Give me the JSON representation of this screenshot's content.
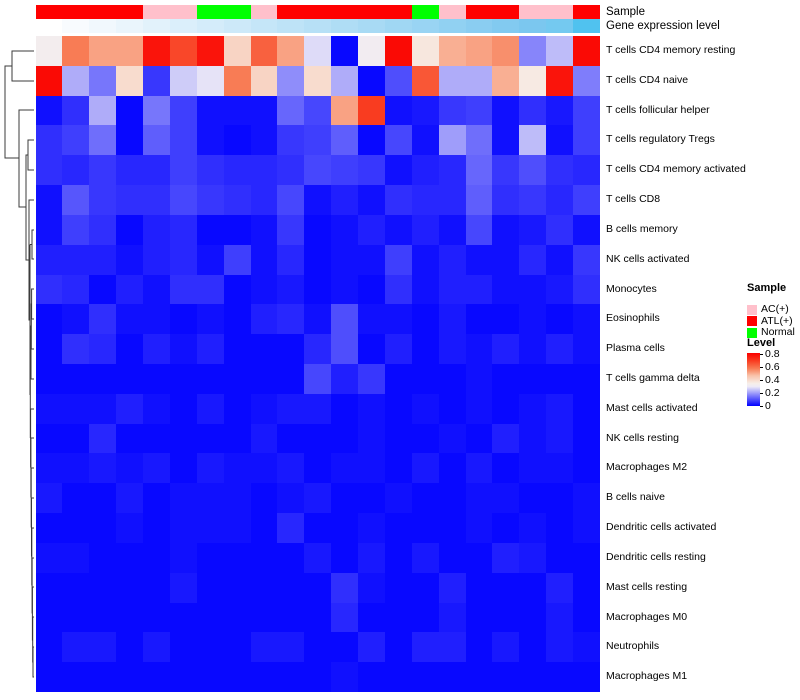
{
  "top_annotation_labels": {
    "sample": "Sample",
    "gene": "Gene expression level"
  },
  "legend": {
    "sample": {
      "title": "Sample",
      "items": [
        {
          "label": "AC(+)",
          "color": "#FFC0CB"
        },
        {
          "label": "ATL(+)",
          "color": "#FF0000"
        },
        {
          "label": "Normal",
          "color": "#00FF00"
        }
      ]
    },
    "level": {
      "title": "Level",
      "ticks": [
        "0.8",
        "0.6",
        "0.4",
        "0.2",
        "0"
      ],
      "tick_values": [
        0.8,
        0.6,
        0.4,
        0.2,
        0
      ],
      "max": 0.82
    }
  },
  "chart_data": {
    "type": "heatmap",
    "title": "Immune cell composition heatmap with sample and gene-expression-level annotations",
    "n_columns": 21,
    "rows": [
      "T cells CD4 memory resting",
      "T cells CD4 naive",
      "T cells follicular helper",
      "T cells regulatory  Tregs",
      "T cells CD4 memory activated",
      "T cells CD8",
      "B cells memory",
      "NK cells activated",
      "Monocytes",
      "Eosinophils",
      "Plasma cells",
      "T cells gamma delta",
      "Mast cells activated",
      "NK cells resting",
      "Macrophages M2",
      "B cells naive",
      "Dendritic cells activated",
      "Dendritic cells resting",
      "Mast cells resting",
      "Macrophages M0",
      "Neutrophils",
      "Macrophages M1"
    ],
    "sample_groups": [
      "ATL(+)",
      "ATL(+)",
      "ATL(+)",
      "ATL(+)",
      "AC(+)",
      "AC(+)",
      "Normal",
      "Normal",
      "AC(+)",
      "ATL(+)",
      "ATL(+)",
      "ATL(+)",
      "ATL(+)",
      "ATL(+)",
      "Normal",
      "AC(+)",
      "ATL(+)",
      "ATL(+)",
      "AC(+)",
      "AC(+)",
      "ATL(+)"
    ],
    "sample_group_colors": {
      "AC(+)": "#FFC0CB",
      "ATL(+)": "#FF0000",
      "Normal": "#00FF00"
    },
    "gene_expression_gradient": [
      "#FFFFFF",
      "#F8FBFE",
      "#F1F8FD",
      "#EAF5FC",
      "#E2F2FB",
      "#DBEFFB",
      "#D4ECFA",
      "#CDE9F9",
      "#C5E6F8",
      "#BEE3F7",
      "#B7E0F6",
      "#AFDDF5",
      "#A8DAF4",
      "#A0D7F3",
      "#99D4F3",
      "#91D1F2",
      "#8ACDF1",
      "#82CAF0",
      "#7BC7EF",
      "#74C9F0",
      "#50C2EF"
    ],
    "colormap": {
      "stops": [
        [
          0,
          "#0000FF"
        ],
        [
          0.3,
          "#EEEBF7"
        ],
        [
          0.35,
          "#F7EEE8"
        ],
        [
          0.47,
          "#F9C2AA"
        ],
        [
          0.58,
          "#F87C55"
        ],
        [
          0.7,
          "#F93C20"
        ],
        [
          0.82,
          "#FA0000"
        ]
      ],
      "min": 0,
      "max": 0.82
    },
    "values": [
      [
        0.33,
        0.58,
        0.52,
        0.52,
        0.78,
        0.68,
        0.78,
        0.42,
        0.63,
        0.52,
        0.28,
        0.01,
        0.32,
        0.8,
        0.37,
        0.5,
        0.52,
        0.55,
        0.17,
        0.24,
        0.8
      ],
      [
        0.8,
        0.22,
        0.15,
        0.4,
        0.07,
        0.26,
        0.29,
        0.58,
        0.42,
        0.18,
        0.4,
        0.22,
        0.01,
        0.1,
        0.65,
        0.22,
        0.22,
        0.5,
        0.36,
        0.78,
        0.16
      ],
      [
        0.02,
        0.06,
        0.22,
        0.01,
        0.15,
        0.08,
        0.02,
        0.02,
        0.02,
        0.13,
        0.09,
        0.52,
        0.7,
        0.02,
        0.03,
        0.07,
        0.08,
        0.02,
        0.06,
        0.03,
        0.08
      ],
      [
        0.06,
        0.08,
        0.14,
        0.01,
        0.12,
        0.08,
        0.02,
        0.01,
        0.02,
        0.07,
        0.08,
        0.12,
        0.01,
        0.09,
        0.02,
        0.2,
        0.14,
        0.02,
        0.24,
        0.02,
        0.08
      ],
      [
        0.06,
        0.05,
        0.07,
        0.05,
        0.05,
        0.08,
        0.06,
        0.05,
        0.05,
        0.06,
        0.09,
        0.08,
        0.07,
        0.02,
        0.04,
        0.05,
        0.13,
        0.07,
        0.1,
        0.06,
        0.05
      ],
      [
        0.02,
        0.11,
        0.07,
        0.06,
        0.06,
        0.09,
        0.07,
        0.06,
        0.05,
        0.09,
        0.02,
        0.04,
        0.02,
        0.06,
        0.05,
        0.05,
        0.12,
        0.06,
        0.07,
        0.05,
        0.08
      ],
      [
        0.02,
        0.08,
        0.06,
        0.01,
        0.04,
        0.05,
        0.01,
        0.01,
        0.02,
        0.07,
        0.01,
        0.02,
        0.04,
        0.02,
        0.04,
        0.02,
        0.09,
        0.02,
        0.03,
        0.06,
        0.02
      ],
      [
        0.04,
        0.04,
        0.04,
        0.02,
        0.04,
        0.05,
        0.02,
        0.08,
        0.02,
        0.05,
        0.01,
        0.02,
        0.02,
        0.08,
        0.02,
        0.04,
        0.02,
        0.02,
        0.05,
        0.02,
        0.07
      ],
      [
        0.06,
        0.05,
        0.01,
        0.04,
        0.02,
        0.06,
        0.06,
        0.01,
        0.02,
        0.03,
        0.01,
        0.02,
        0.01,
        0.06,
        0.02,
        0.04,
        0.04,
        0.02,
        0.02,
        0.03,
        0.06
      ],
      [
        0.01,
        0.02,
        0.06,
        0.02,
        0.02,
        0.01,
        0.02,
        0.01,
        0.04,
        0.05,
        0.02,
        0.1,
        0.02,
        0.02,
        0.01,
        0.03,
        0.01,
        0.01,
        0.02,
        0.01,
        0.02
      ],
      [
        0.01,
        0.06,
        0.05,
        0.01,
        0.04,
        0.02,
        0.04,
        0.01,
        0.01,
        0.01,
        0.05,
        0.1,
        0.01,
        0.04,
        0.01,
        0.03,
        0.02,
        0.04,
        0.02,
        0.04,
        0.02
      ],
      [
        0.01,
        0.01,
        0.01,
        0.01,
        0.01,
        0.01,
        0.01,
        0.01,
        0.01,
        0.01,
        0.09,
        0.04,
        0.07,
        0.01,
        0.01,
        0.01,
        0.02,
        0.01,
        0.01,
        0.01,
        0.01
      ],
      [
        0.02,
        0.02,
        0.02,
        0.04,
        0.02,
        0.01,
        0.03,
        0.01,
        0.02,
        0.03,
        0.03,
        0.01,
        0.02,
        0.01,
        0.02,
        0.01,
        0.02,
        0.01,
        0.02,
        0.03,
        0.01
      ],
      [
        0.01,
        0.01,
        0.05,
        0.01,
        0.01,
        0.01,
        0.01,
        0.01,
        0.03,
        0.01,
        0.01,
        0.01,
        0.02,
        0.01,
        0.01,
        0.02,
        0.01,
        0.04,
        0.02,
        0.03,
        0.01
      ],
      [
        0.02,
        0.02,
        0.03,
        0.02,
        0.03,
        0.01,
        0.03,
        0.02,
        0.02,
        0.03,
        0.01,
        0.02,
        0.02,
        0.01,
        0.03,
        0.01,
        0.03,
        0.01,
        0.02,
        0.02,
        0.01
      ],
      [
        0.03,
        0.01,
        0.01,
        0.03,
        0.01,
        0.02,
        0.02,
        0.02,
        0.01,
        0.02,
        0.03,
        0.01,
        0.01,
        0.02,
        0.01,
        0.01,
        0.02,
        0.02,
        0.01,
        0.01,
        0.02
      ],
      [
        0.01,
        0.01,
        0.01,
        0.02,
        0.01,
        0.02,
        0.02,
        0.02,
        0.01,
        0.05,
        0.01,
        0.01,
        0.02,
        0.01,
        0.01,
        0.01,
        0.02,
        0.01,
        0.02,
        0.01,
        0.02
      ],
      [
        0.02,
        0.02,
        0.01,
        0.01,
        0.01,
        0.02,
        0.01,
        0.01,
        0.01,
        0.01,
        0.03,
        0.01,
        0.03,
        0.01,
        0.03,
        0.01,
        0.01,
        0.04,
        0.03,
        0.01,
        0.01
      ],
      [
        0.01,
        0.01,
        0.01,
        0.01,
        0.01,
        0.03,
        0.01,
        0.01,
        0.01,
        0.01,
        0.01,
        0.06,
        0.02,
        0.01,
        0.01,
        0.04,
        0.01,
        0.01,
        0.01,
        0.04,
        0.01
      ],
      [
        0.01,
        0.01,
        0.01,
        0.01,
        0.01,
        0.01,
        0.01,
        0.01,
        0.01,
        0.01,
        0.01,
        0.05,
        0.01,
        0.01,
        0.01,
        0.03,
        0.01,
        0.01,
        0.01,
        0.03,
        0.01
      ],
      [
        0.01,
        0.03,
        0.03,
        0.01,
        0.03,
        0.01,
        0.01,
        0.01,
        0.03,
        0.03,
        0.01,
        0.01,
        0.04,
        0.01,
        0.04,
        0.04,
        0.01,
        0.03,
        0.01,
        0.03,
        0.02
      ],
      [
        0.01,
        0.01,
        0.01,
        0.01,
        0.01,
        0.01,
        0.01,
        0.01,
        0.01,
        0.01,
        0.01,
        0.02,
        0.01,
        0.01,
        0.01,
        0.01,
        0.01,
        0.01,
        0.01,
        0.01,
        0.01
      ]
    ]
  },
  "dendrogram": {
    "color": "#3b3b3b",
    "paths": [
      "M34 51 H12 V81 H34",
      "M12 66 H5 V158 H19",
      "M34 110 H19 V207 H26",
      "M34 140 H28 V170 H34",
      "M28 155 H26 V260 H29",
      "M34 200 H29 V320 H30",
      "M34 230 H32 V259 H34",
      "M32 244.5 H30",
      "M30 244.5 V395",
      "M34 289 H31.6 V319 H34",
      "M31.6 304 H31.3 V349 H34",
      "M31.3 326 H31 V379 H34",
      "M31 352 H30.3",
      "M30.3 352 V438",
      "M30.3 395 H30",
      "M30.9 467 H30.6 V409 H34",
      "M30.6 438 H30.3",
      "M31.2 497 H30.9 V438 H34",
      "M31.5 527 H31.2 V468 H34",
      "M31.8 556 H31.5 V498 H34",
      "M32.1 585 H31.8 V528 H34",
      "M32.4 613 H32.1 V558 H34",
      "M32.7 640 H32.4 V587 H34",
      "M33 662 H32.7 V617 H34",
      "M34 647 H33 V677 H34"
    ]
  }
}
